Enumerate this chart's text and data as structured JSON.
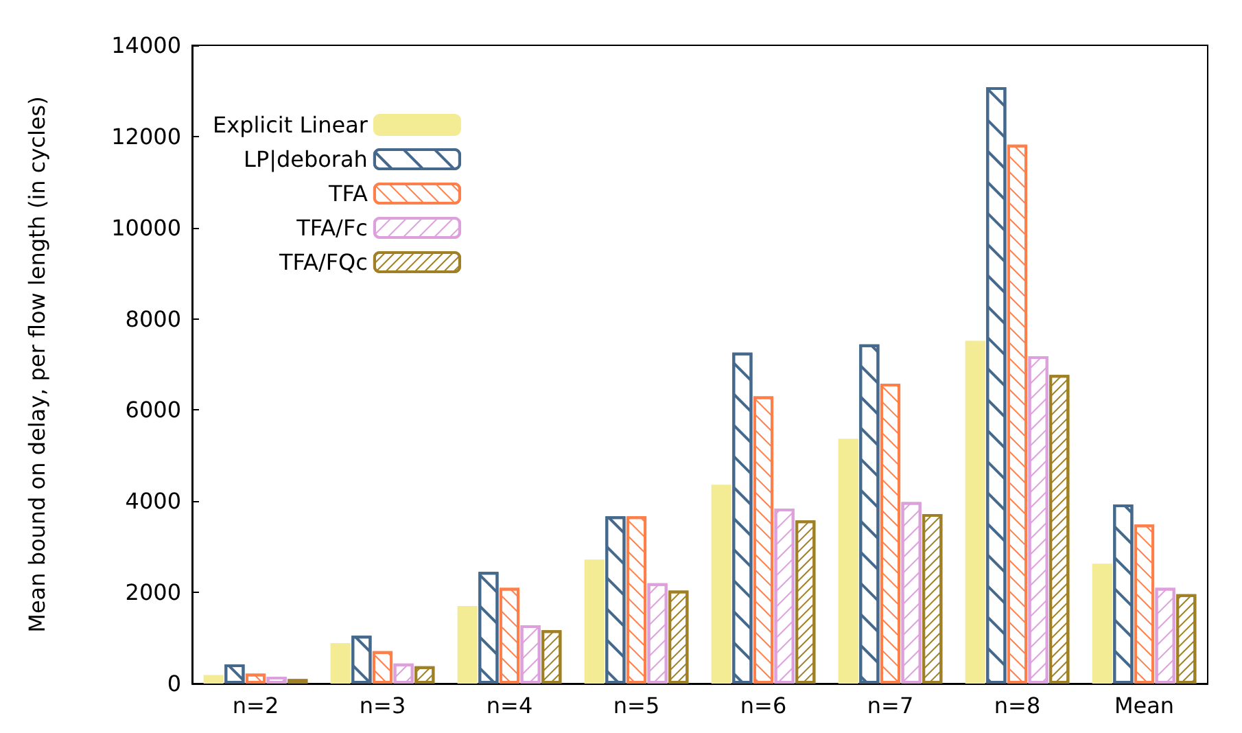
{
  "chart_data": {
    "type": "bar",
    "ylabel": "Mean bound on delay, per flow length (in cycles)",
    "categories": [
      "n=2",
      "n=3",
      "n=4",
      "n=5",
      "n=6",
      "n=7",
      "n=8",
      "Mean"
    ],
    "series": [
      {
        "name": "Explicit Linear",
        "color": "#f3ec94",
        "values": [
          190,
          890,
          1700,
          2720,
          4360,
          5370,
          7520,
          2630
        ]
      },
      {
        "name": "LP|deborah",
        "color": "#44698c",
        "values": [
          420,
          1050,
          2450,
          3670,
          7260,
          7440,
          13080,
          3930
        ]
      },
      {
        "name": "TFA",
        "color": "#ff7f4a",
        "values": [
          220,
          710,
          2100,
          3670,
          6300,
          6580,
          11820,
          3490
        ]
      },
      {
        "name": "TFA/Fc",
        "color": "#dda0dd",
        "values": [
          150,
          440,
          1280,
          2200,
          3840,
          3980,
          7180,
          2100
        ]
      },
      {
        "name": "TFA/FQc",
        "color": "#a08024",
        "values": [
          100,
          380,
          1170,
          2040,
          3580,
          3720,
          6770,
          1960
        ]
      }
    ],
    "ylim": [
      0,
      14000
    ],
    "yticks": [
      0,
      2000,
      4000,
      6000,
      8000,
      10000,
      12000,
      14000
    ],
    "grid": false,
    "legend": "top left"
  }
}
